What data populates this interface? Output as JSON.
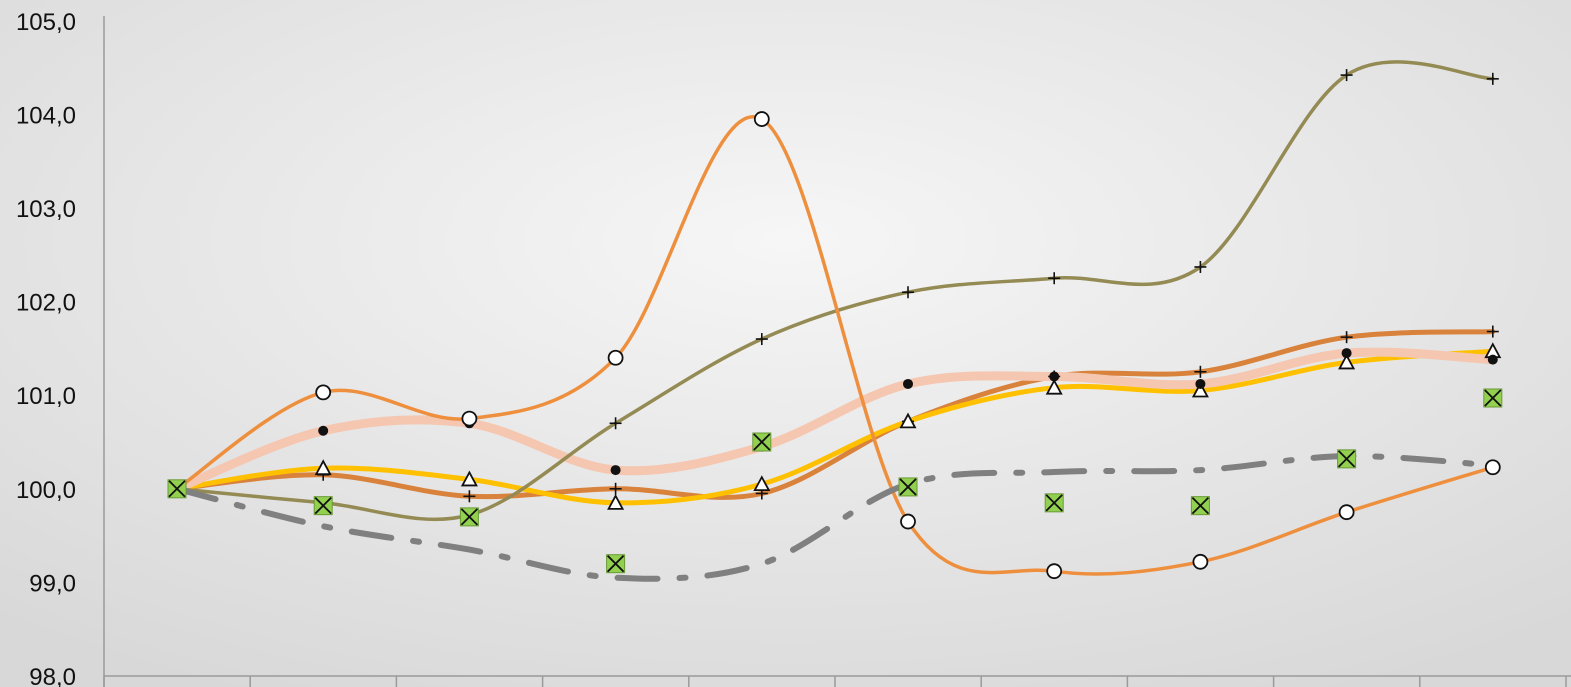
{
  "chart_data": {
    "type": "line",
    "title": "",
    "xlabel": "",
    "ylabel": "",
    "x": [
      1,
      2,
      3,
      4,
      5,
      6,
      7,
      8,
      9,
      10
    ],
    "ylim": [
      98.0,
      105.0
    ],
    "y_ticks": [
      "98,0",
      "99,0",
      "100,0",
      "101,0",
      "102,0",
      "103,0",
      "104,0",
      "105,0"
    ],
    "y_tick_values": [
      98,
      99,
      100,
      101,
      102,
      103,
      104,
      105
    ],
    "grid": false,
    "legend": "none",
    "series": [
      {
        "values": [
          100.0,
          100.15,
          99.92,
          100.0,
          99.95,
          100.72,
          101.2,
          101.25,
          101.62,
          101.68
        ],
        "color": "#d9823b",
        "marker": "plus",
        "style": "solid-thick"
      },
      {
        "values": [
          100.0,
          100.22,
          100.1,
          99.85,
          100.05,
          100.72,
          101.08,
          101.05,
          101.35,
          101.47
        ],
        "color": "#ffc000",
        "marker": "triangle",
        "style": "solid-thick"
      },
      {
        "values": [
          100.0,
          100.62,
          100.7,
          100.2,
          100.45,
          101.12,
          101.2,
          101.12,
          101.45,
          101.38
        ],
        "color": "#f5c6b0",
        "marker": "dot",
        "style": "solid-wide"
      },
      {
        "values": [
          100.0,
          99.85,
          99.72,
          100.7,
          101.6,
          102.1,
          102.25,
          102.37,
          104.42,
          104.38
        ],
        "color": "#948a54",
        "marker": "plus",
        "style": "solid"
      },
      {
        "values": [
          100.0,
          101.03,
          100.75,
          101.4,
          103.95,
          99.65,
          99.12,
          99.22,
          99.75,
          100.23
        ],
        "color": "#ee8f3e",
        "marker": "circle",
        "style": "solid"
      },
      {
        "values": [
          100.0,
          99.6,
          99.35,
          99.05,
          99.2,
          100.05,
          100.18,
          100.2,
          100.35,
          100.25
        ],
        "color": "#808080",
        "marker": "none",
        "style": "dash-dot"
      },
      {
        "values": [
          100.0,
          99.82,
          99.7,
          99.2,
          100.5,
          100.02,
          99.85,
          99.82,
          100.32,
          100.97
        ],
        "color": "#92d050",
        "marker": "x-square",
        "style": "markers-only"
      }
    ]
  }
}
